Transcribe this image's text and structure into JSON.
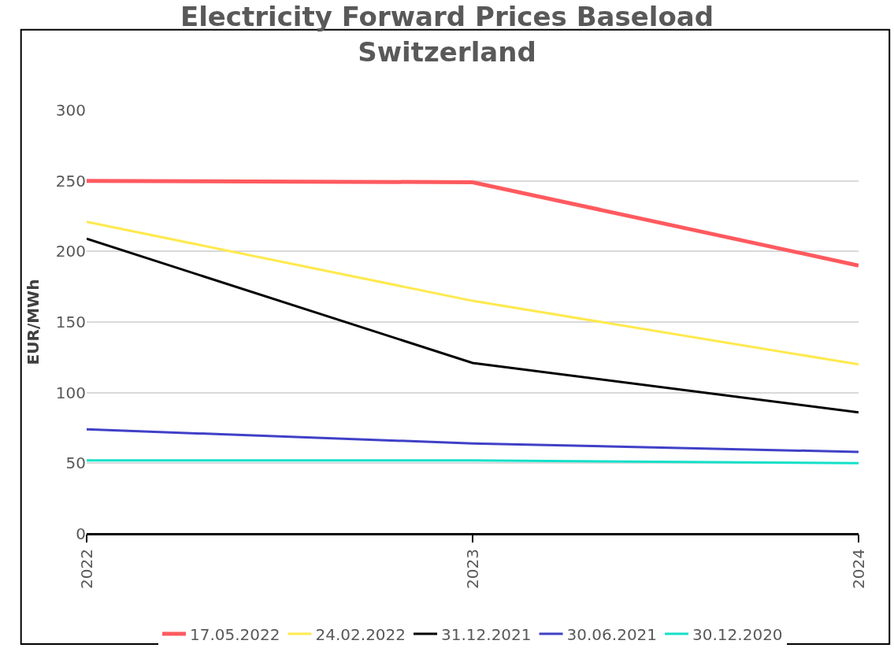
{
  "chart_data": {
    "type": "line",
    "title": "Electricity Forward Prices Baseload Switzerland",
    "ylabel": "EUR/MWh",
    "categories": [
      "2022",
      "2023",
      "2024"
    ],
    "series": [
      {
        "name": "17.05.2022",
        "color": "#ff5a5f",
        "values": [
          250,
          249,
          190
        ]
      },
      {
        "name": "24.02.2022",
        "color": "#ffe94d",
        "values": [
          221,
          165,
          120
        ]
      },
      {
        "name": "31.12.2021",
        "color": "#000000",
        "values": [
          209,
          121,
          86
        ]
      },
      {
        "name": "30.06.2021",
        "color": "#4040c8",
        "values": [
          74,
          64,
          58
        ]
      },
      {
        "name": "30.12.2020",
        "color": "#14e0c8",
        "values": [
          52,
          52,
          50
        ]
      }
    ],
    "ylim": [
      0,
      300
    ],
    "yticks": [
      0,
      50,
      100,
      150,
      200,
      250,
      300
    ],
    "grid": "y",
    "legend": "bottom",
    "marker": "none",
    "line_style": "solid"
  }
}
